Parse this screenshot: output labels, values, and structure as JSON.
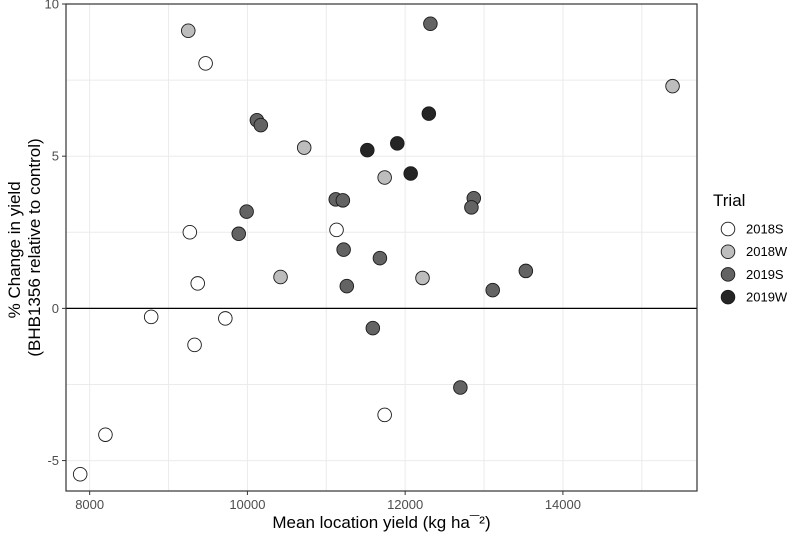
{
  "chart_data": {
    "type": "scatter",
    "title": "",
    "xlabel": "Mean location yield (kg ha¯²)",
    "ylabel_lines": [
      "% Change in yield",
      "(BHB1356 relative to control)"
    ],
    "xlim": [
      7700,
      15700
    ],
    "ylim": [
      -6.0,
      10.0
    ],
    "x_ticks": [
      8000,
      10000,
      12000,
      14000
    ],
    "x_tick_labels": [
      "8000",
      "10000",
      "12000",
      "14000"
    ],
    "y_ticks": [
      -5,
      0,
      5,
      10
    ],
    "y_tick_labels": [
      "-5",
      "0",
      "5",
      "10"
    ],
    "grid": true,
    "reference_line_y": 0,
    "legend": {
      "title": "Trial",
      "position": "right"
    },
    "series": [
      {
        "name": "2018S",
        "color": "#ffffff",
        "points": [
          {
            "x": 9470,
            "y": 8.05
          },
          {
            "x": 9270,
            "y": 2.5
          },
          {
            "x": 9370,
            "y": 0.82
          },
          {
            "x": 8780,
            "y": -0.28
          },
          {
            "x": 9720,
            "y": -0.33
          },
          {
            "x": 9330,
            "y": -1.2
          },
          {
            "x": 8200,
            "y": -4.15
          },
          {
            "x": 7880,
            "y": -5.45
          },
          {
            "x": 11130,
            "y": 2.58
          },
          {
            "x": 11740,
            "y": -3.5
          }
        ]
      },
      {
        "name": "2018W",
        "color": "#bdbdbd",
        "points": [
          {
            "x": 9250,
            "y": 9.12
          },
          {
            "x": 10720,
            "y": 5.28
          },
          {
            "x": 10420,
            "y": 1.03
          },
          {
            "x": 11740,
            "y": 4.3
          },
          {
            "x": 12220,
            "y": 1.0
          },
          {
            "x": 15390,
            "y": 7.3
          }
        ]
      },
      {
        "name": "2019S",
        "color": "#636363",
        "points": [
          {
            "x": 10120,
            "y": 6.18
          },
          {
            "x": 10170,
            "y": 6.02
          },
          {
            "x": 9990,
            "y": 3.18
          },
          {
            "x": 9890,
            "y": 2.45
          },
          {
            "x": 11120,
            "y": 3.58
          },
          {
            "x": 11210,
            "y": 3.55
          },
          {
            "x": 11220,
            "y": 1.93
          },
          {
            "x": 11260,
            "y": 0.73
          },
          {
            "x": 11590,
            "y": -0.65
          },
          {
            "x": 11680,
            "y": 1.65
          },
          {
            "x": 12320,
            "y": 9.35
          },
          {
            "x": 12870,
            "y": 3.62
          },
          {
            "x": 12840,
            "y": 3.32
          },
          {
            "x": 13110,
            "y": 0.6
          },
          {
            "x": 13530,
            "y": 1.23
          },
          {
            "x": 12700,
            "y": -2.6
          }
        ]
      },
      {
        "name": "2019W",
        "color": "#252525",
        "points": [
          {
            "x": 11520,
            "y": 5.2
          },
          {
            "x": 11900,
            "y": 5.42
          },
          {
            "x": 12070,
            "y": 4.43
          },
          {
            "x": 12300,
            "y": 6.4
          }
        ]
      }
    ]
  }
}
